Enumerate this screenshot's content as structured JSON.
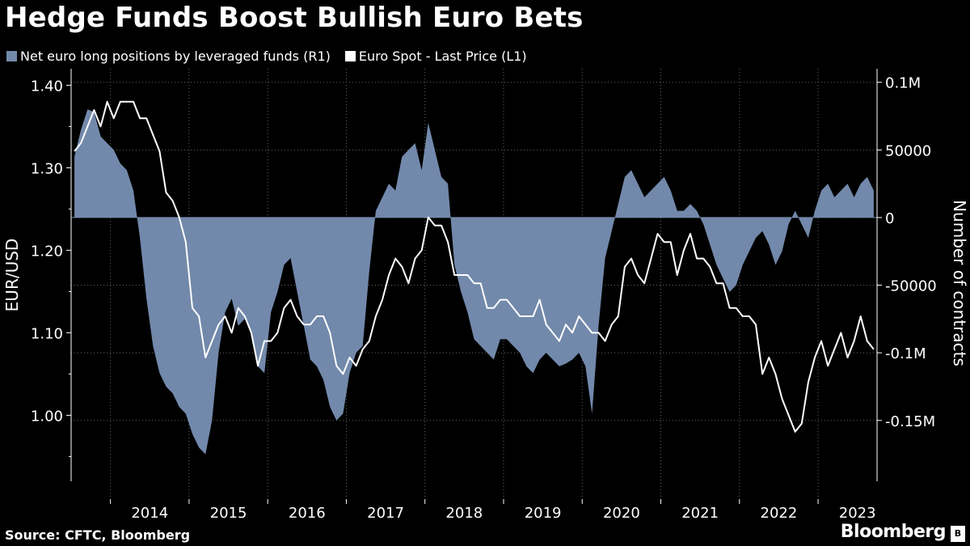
{
  "title": "Hedge Funds Boost Bullish Euro Bets",
  "legend": {
    "bars_label": "Net euro long positions by leveraged funds (R1)",
    "line_label": "Euro Spot - Last Price (L1)",
    "bars_color": "#7289ab",
    "line_color": "#ffffff"
  },
  "footer": {
    "source": "Source: CFTC, Bloomberg",
    "brand": "Bloomberg"
  },
  "chart_data": {
    "type": "line+area",
    "x_range": [
      "2013-07",
      "2023-09"
    ],
    "x_ticks": [
      "2014",
      "2015",
      "2016",
      "2017",
      "2018",
      "2019",
      "2020",
      "2021",
      "2022",
      "2023"
    ],
    "left_axis": {
      "label": "EUR/USD",
      "ylim": [
        0.92,
        1.42
      ],
      "ticks": [
        1.0,
        1.1,
        1.2,
        1.3,
        1.4
      ],
      "tick_labels": [
        "1.00",
        "1.10",
        "1.20",
        "1.30",
        "1.40"
      ]
    },
    "right_axis": {
      "label": "Number of contracts",
      "ylim": [
        -195000,
        110000
      ],
      "ticks": [
        100000,
        50000,
        0,
        -50000,
        -100000,
        -150000
      ],
      "tick_labels": [
        "0.1M",
        "50000",
        "0",
        "-50000",
        "-0.1M",
        "-0.15M"
      ]
    },
    "grid": true,
    "series": [
      {
        "name": "Net euro long positions by leveraged funds (R1)",
        "kind": "area",
        "axis": "right",
        "points": [
          [
            "2013-07",
            45000
          ],
          [
            "2013-08",
            65000
          ],
          [
            "2013-09",
            80000
          ],
          [
            "2013-10",
            78000
          ],
          [
            "2013-11",
            60000
          ],
          [
            "2013-12",
            55000
          ],
          [
            "2014-01",
            50000
          ],
          [
            "2014-02",
            40000
          ],
          [
            "2014-03",
            35000
          ],
          [
            "2014-04",
            20000
          ],
          [
            "2014-05",
            -15000
          ],
          [
            "2014-06",
            -60000
          ],
          [
            "2014-07",
            -95000
          ],
          [
            "2014-08",
            -115000
          ],
          [
            "2014-09",
            -125000
          ],
          [
            "2014-10",
            -130000
          ],
          [
            "2014-11",
            -140000
          ],
          [
            "2014-12",
            -145000
          ],
          [
            "2015-01",
            -160000
          ],
          [
            "2015-02",
            -170000
          ],
          [
            "2015-03",
            -175000
          ],
          [
            "2015-04",
            -150000
          ],
          [
            "2015-05",
            -100000
          ],
          [
            "2015-06",
            -70000
          ],
          [
            "2015-07",
            -60000
          ],
          [
            "2015-08",
            -80000
          ],
          [
            "2015-09",
            -75000
          ],
          [
            "2015-10",
            -85000
          ],
          [
            "2015-11",
            -110000
          ],
          [
            "2015-12",
            -115000
          ],
          [
            "2016-01",
            -70000
          ],
          [
            "2016-02",
            -55000
          ],
          [
            "2016-03",
            -35000
          ],
          [
            "2016-04",
            -30000
          ],
          [
            "2016-05",
            -55000
          ],
          [
            "2016-06",
            -80000
          ],
          [
            "2016-07",
            -105000
          ],
          [
            "2016-08",
            -110000
          ],
          [
            "2016-09",
            -120000
          ],
          [
            "2016-10",
            -140000
          ],
          [
            "2016-11",
            -150000
          ],
          [
            "2016-12",
            -145000
          ],
          [
            "2017-01",
            -115000
          ],
          [
            "2017-02",
            -100000
          ],
          [
            "2017-03",
            -95000
          ],
          [
            "2017-04",
            -40000
          ],
          [
            "2017-05",
            5000
          ],
          [
            "2017-06",
            15000
          ],
          [
            "2017-07",
            25000
          ],
          [
            "2017-08",
            20000
          ],
          [
            "2017-09",
            45000
          ],
          [
            "2017-10",
            50000
          ],
          [
            "2017-11",
            55000
          ],
          [
            "2017-12",
            35000
          ],
          [
            "2018-01",
            70000
          ],
          [
            "2018-02",
            50000
          ],
          [
            "2018-03",
            30000
          ],
          [
            "2018-04",
            25000
          ],
          [
            "2018-05",
            -35000
          ],
          [
            "2018-06",
            -55000
          ],
          [
            "2018-07",
            -70000
          ],
          [
            "2018-08",
            -90000
          ],
          [
            "2018-09",
            -95000
          ],
          [
            "2018-10",
            -100000
          ],
          [
            "2018-11",
            -105000
          ],
          [
            "2018-12",
            -90000
          ],
          [
            "2019-01",
            -90000
          ],
          [
            "2019-02",
            -95000
          ],
          [
            "2019-03",
            -100000
          ],
          [
            "2019-04",
            -110000
          ],
          [
            "2019-05",
            -115000
          ],
          [
            "2019-06",
            -105000
          ],
          [
            "2019-07",
            -100000
          ],
          [
            "2019-08",
            -105000
          ],
          [
            "2019-09",
            -110000
          ],
          [
            "2019-10",
            -108000
          ],
          [
            "2019-11",
            -105000
          ],
          [
            "2019-12",
            -100000
          ],
          [
            "2020-01",
            -110000
          ],
          [
            "2020-02",
            -145000
          ],
          [
            "2020-03",
            -80000
          ],
          [
            "2020-04",
            -30000
          ],
          [
            "2020-05",
            -10000
          ],
          [
            "2020-06",
            10000
          ],
          [
            "2020-07",
            30000
          ],
          [
            "2020-08",
            35000
          ],
          [
            "2020-09",
            25000
          ],
          [
            "2020-10",
            15000
          ],
          [
            "2020-11",
            20000
          ],
          [
            "2020-12",
            25000
          ],
          [
            "2021-01",
            30000
          ],
          [
            "2021-02",
            20000
          ],
          [
            "2021-03",
            5000
          ],
          [
            "2021-04",
            5000
          ],
          [
            "2021-05",
            10000
          ],
          [
            "2021-06",
            5000
          ],
          [
            "2021-07",
            -5000
          ],
          [
            "2021-08",
            -20000
          ],
          [
            "2021-09",
            -35000
          ],
          [
            "2021-10",
            -45000
          ],
          [
            "2021-11",
            -55000
          ],
          [
            "2021-12",
            -50000
          ],
          [
            "2022-01",
            -35000
          ],
          [
            "2022-02",
            -25000
          ],
          [
            "2022-03",
            -15000
          ],
          [
            "2022-04",
            -10000
          ],
          [
            "2022-05",
            -20000
          ],
          [
            "2022-06",
            -35000
          ],
          [
            "2022-07",
            -25000
          ],
          [
            "2022-08",
            -5000
          ],
          [
            "2022-09",
            5000
          ],
          [
            "2022-10",
            -5000
          ],
          [
            "2022-11",
            -15000
          ],
          [
            "2022-12",
            5000
          ],
          [
            "2023-01",
            20000
          ],
          [
            "2023-02",
            25000
          ],
          [
            "2023-03",
            15000
          ],
          [
            "2023-04",
            20000
          ],
          [
            "2023-05",
            25000
          ],
          [
            "2023-06",
            15000
          ],
          [
            "2023-07",
            25000
          ],
          [
            "2023-08",
            30000
          ],
          [
            "2023-09",
            20000
          ]
        ]
      },
      {
        "name": "Euro Spot - Last Price (L1)",
        "kind": "line",
        "axis": "left",
        "points": [
          [
            "2013-07",
            1.32
          ],
          [
            "2013-08",
            1.33
          ],
          [
            "2013-09",
            1.35
          ],
          [
            "2013-10",
            1.37
          ],
          [
            "2013-11",
            1.35
          ],
          [
            "2013-12",
            1.38
          ],
          [
            "2014-01",
            1.36
          ],
          [
            "2014-02",
            1.38
          ],
          [
            "2014-03",
            1.38
          ],
          [
            "2014-04",
            1.38
          ],
          [
            "2014-05",
            1.36
          ],
          [
            "2014-06",
            1.36
          ],
          [
            "2014-07",
            1.34
          ],
          [
            "2014-08",
            1.32
          ],
          [
            "2014-09",
            1.27
          ],
          [
            "2014-10",
            1.26
          ],
          [
            "2014-11",
            1.24
          ],
          [
            "2014-12",
            1.21
          ],
          [
            "2015-01",
            1.13
          ],
          [
            "2015-02",
            1.12
          ],
          [
            "2015-03",
            1.07
          ],
          [
            "2015-04",
            1.09
          ],
          [
            "2015-05",
            1.11
          ],
          [
            "2015-06",
            1.12
          ],
          [
            "2015-07",
            1.1
          ],
          [
            "2015-08",
            1.13
          ],
          [
            "2015-09",
            1.12
          ],
          [
            "2015-10",
            1.1
          ],
          [
            "2015-11",
            1.06
          ],
          [
            "2015-12",
            1.09
          ],
          [
            "2016-01",
            1.09
          ],
          [
            "2016-02",
            1.1
          ],
          [
            "2016-03",
            1.13
          ],
          [
            "2016-04",
            1.14
          ],
          [
            "2016-05",
            1.12
          ],
          [
            "2016-06",
            1.11
          ],
          [
            "2016-07",
            1.11
          ],
          [
            "2016-08",
            1.12
          ],
          [
            "2016-09",
            1.12
          ],
          [
            "2016-10",
            1.1
          ],
          [
            "2016-11",
            1.06
          ],
          [
            "2016-12",
            1.05
          ],
          [
            "2017-01",
            1.07
          ],
          [
            "2017-02",
            1.06
          ],
          [
            "2017-03",
            1.08
          ],
          [
            "2017-04",
            1.09
          ],
          [
            "2017-05",
            1.12
          ],
          [
            "2017-06",
            1.14
          ],
          [
            "2017-07",
            1.17
          ],
          [
            "2017-08",
            1.19
          ],
          [
            "2017-09",
            1.18
          ],
          [
            "2017-10",
            1.16
          ],
          [
            "2017-11",
            1.19
          ],
          [
            "2017-12",
            1.2
          ],
          [
            "2018-01",
            1.24
          ],
          [
            "2018-02",
            1.23
          ],
          [
            "2018-03",
            1.23
          ],
          [
            "2018-04",
            1.21
          ],
          [
            "2018-05",
            1.17
          ],
          [
            "2018-06",
            1.17
          ],
          [
            "2018-07",
            1.17
          ],
          [
            "2018-08",
            1.16
          ],
          [
            "2018-09",
            1.16
          ],
          [
            "2018-10",
            1.13
          ],
          [
            "2018-11",
            1.13
          ],
          [
            "2018-12",
            1.14
          ],
          [
            "2019-01",
            1.14
          ],
          [
            "2019-02",
            1.13
          ],
          [
            "2019-03",
            1.12
          ],
          [
            "2019-04",
            1.12
          ],
          [
            "2019-05",
            1.12
          ],
          [
            "2019-06",
            1.14
          ],
          [
            "2019-07",
            1.11
          ],
          [
            "2019-08",
            1.1
          ],
          [
            "2019-09",
            1.09
          ],
          [
            "2019-10",
            1.11
          ],
          [
            "2019-11",
            1.1
          ],
          [
            "2019-12",
            1.12
          ],
          [
            "2020-01",
            1.11
          ],
          [
            "2020-02",
            1.1
          ],
          [
            "2020-03",
            1.1
          ],
          [
            "2020-04",
            1.09
          ],
          [
            "2020-05",
            1.11
          ],
          [
            "2020-06",
            1.12
          ],
          [
            "2020-07",
            1.18
          ],
          [
            "2020-08",
            1.19
          ],
          [
            "2020-09",
            1.17
          ],
          [
            "2020-10",
            1.16
          ],
          [
            "2020-11",
            1.19
          ],
          [
            "2020-12",
            1.22
          ],
          [
            "2021-01",
            1.21
          ],
          [
            "2021-02",
            1.21
          ],
          [
            "2021-03",
            1.17
          ],
          [
            "2021-04",
            1.2
          ],
          [
            "2021-05",
            1.22
          ],
          [
            "2021-06",
            1.19
          ],
          [
            "2021-07",
            1.19
          ],
          [
            "2021-08",
            1.18
          ],
          [
            "2021-09",
            1.16
          ],
          [
            "2021-10",
            1.16
          ],
          [
            "2021-11",
            1.13
          ],
          [
            "2021-12",
            1.13
          ],
          [
            "2022-01",
            1.12
          ],
          [
            "2022-02",
            1.12
          ],
          [
            "2022-03",
            1.11
          ],
          [
            "2022-04",
            1.05
          ],
          [
            "2022-05",
            1.07
          ],
          [
            "2022-06",
            1.05
          ],
          [
            "2022-07",
            1.02
          ],
          [
            "2022-08",
            1.0
          ],
          [
            "2022-09",
            0.98
          ],
          [
            "2022-10",
            0.99
          ],
          [
            "2022-11",
            1.04
          ],
          [
            "2022-12",
            1.07
          ],
          [
            "2023-01",
            1.09
          ],
          [
            "2023-02",
            1.06
          ],
          [
            "2023-03",
            1.08
          ],
          [
            "2023-04",
            1.1
          ],
          [
            "2023-05",
            1.07
          ],
          [
            "2023-06",
            1.09
          ],
          [
            "2023-07",
            1.12
          ],
          [
            "2023-08",
            1.09
          ],
          [
            "2023-09",
            1.08
          ]
        ]
      }
    ]
  }
}
